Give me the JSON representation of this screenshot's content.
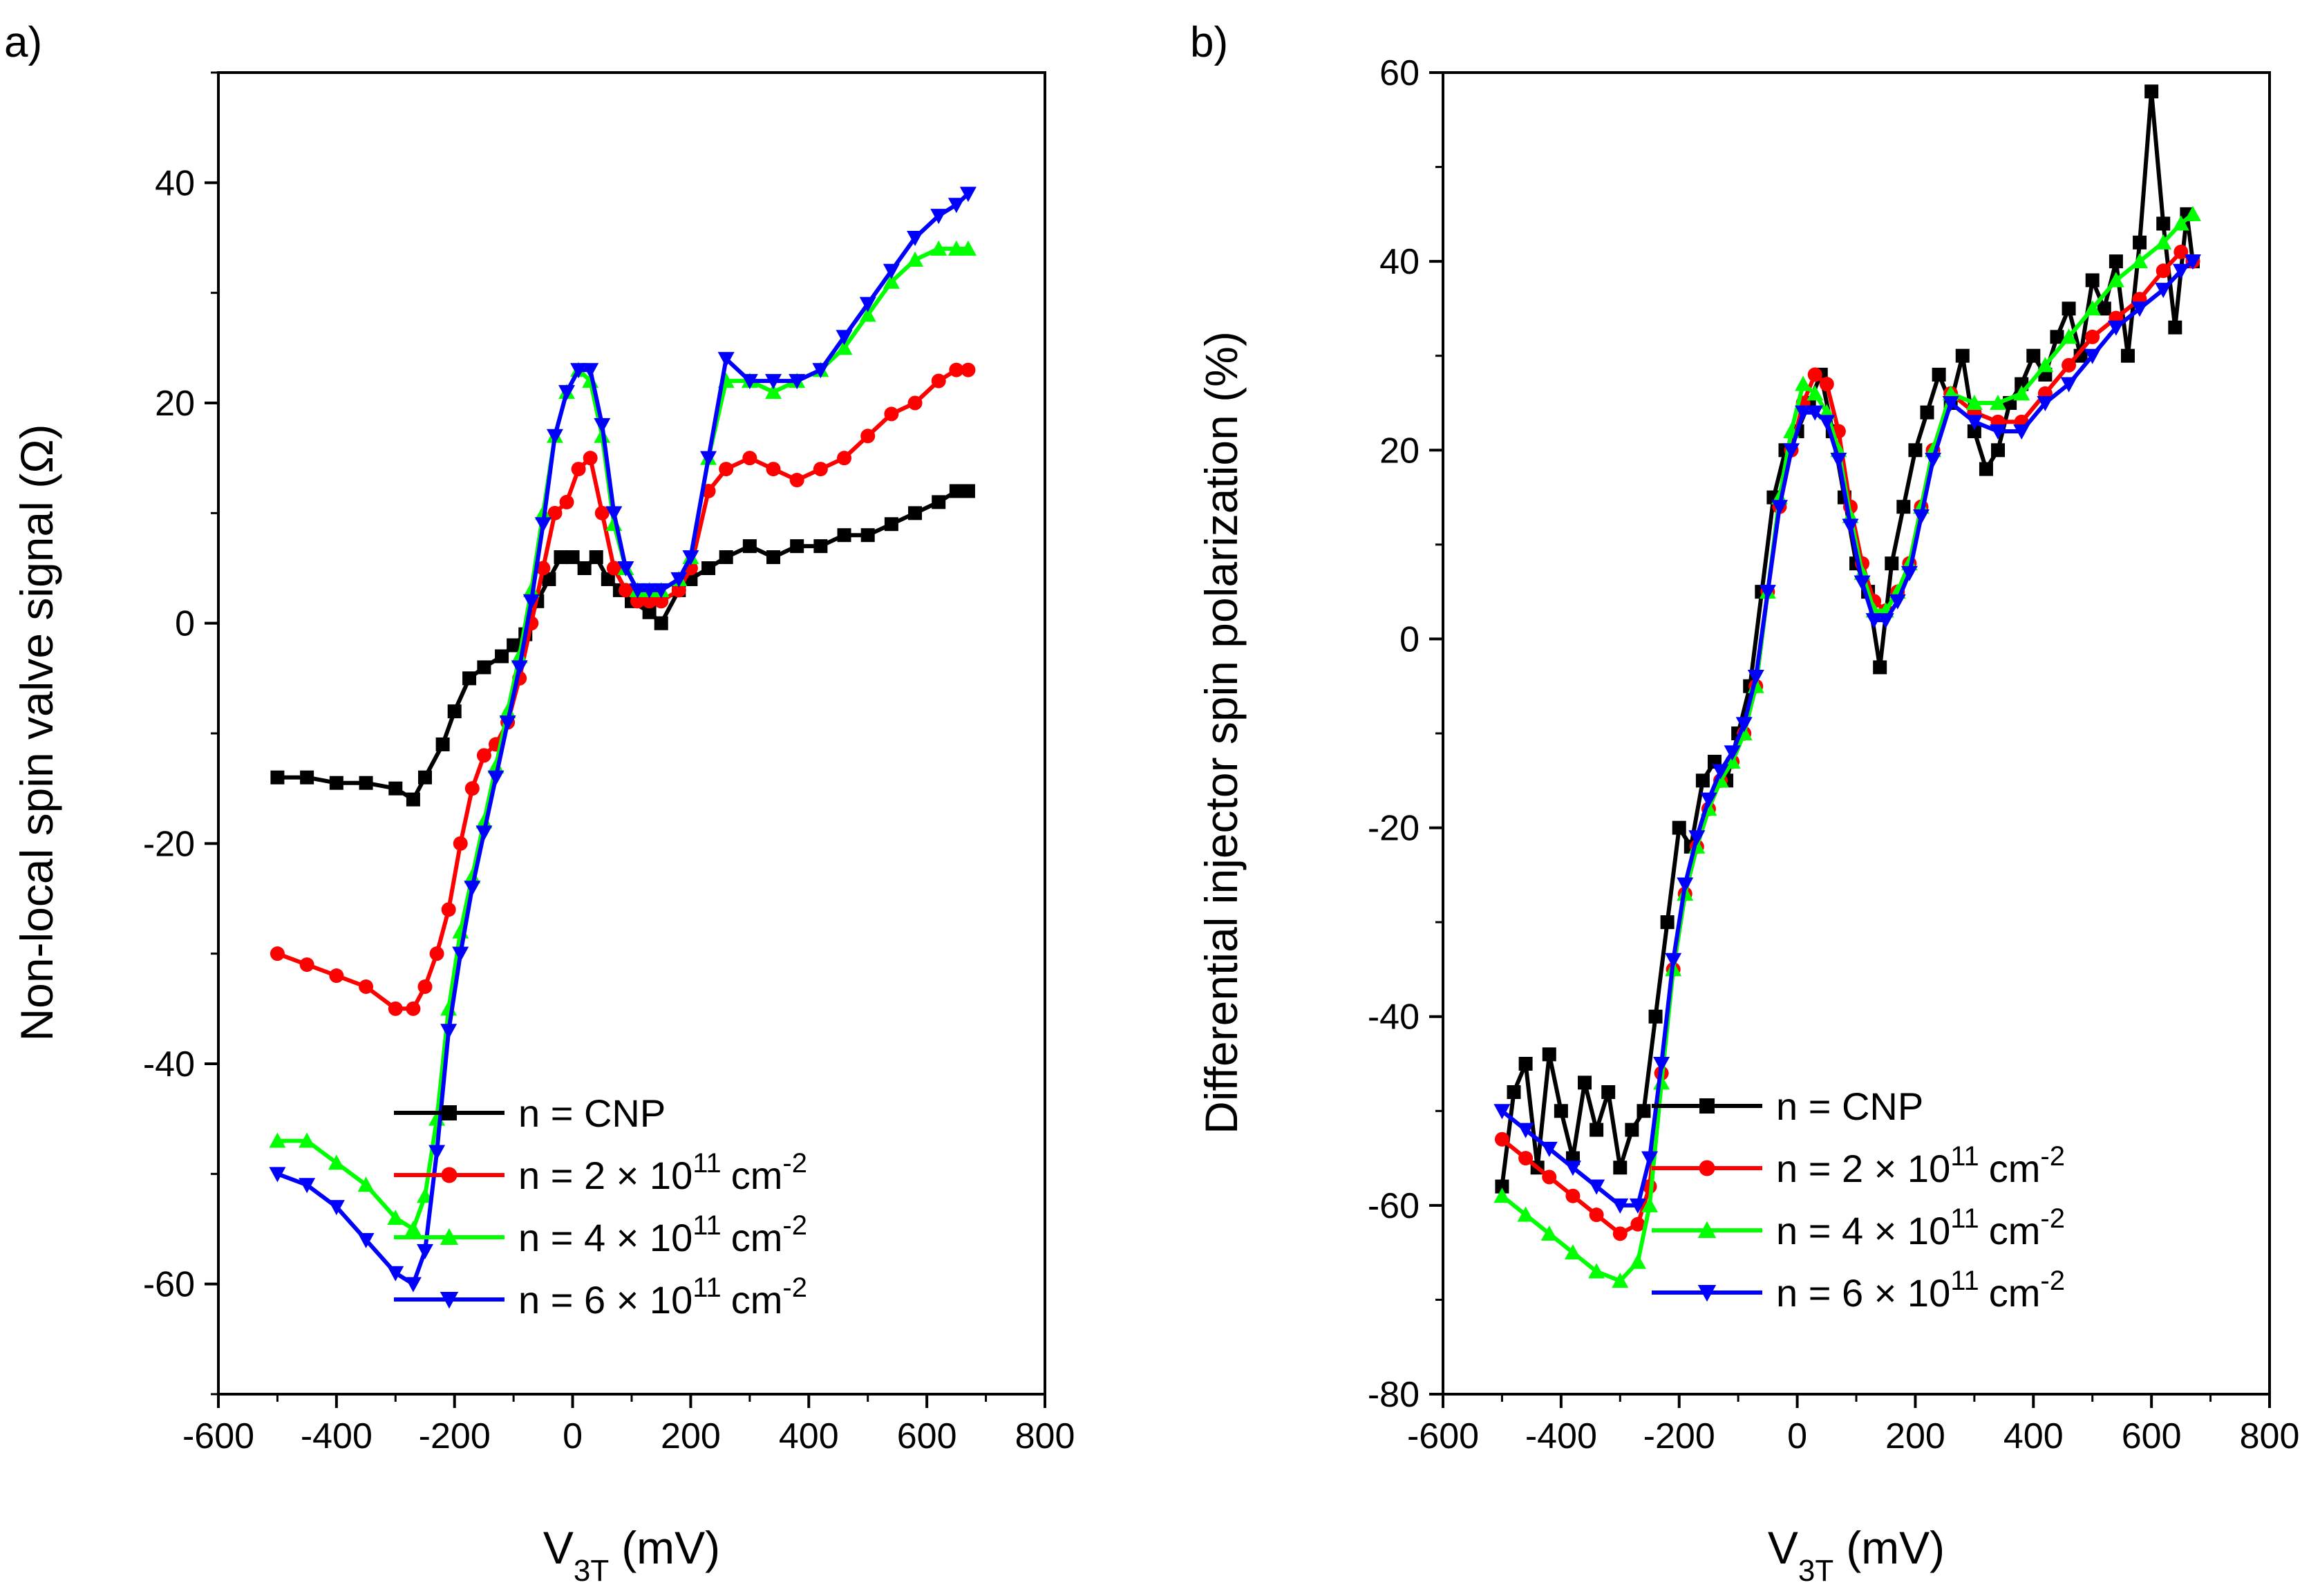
{
  "chart_data": [
    {
      "panel_label": "a)",
      "type": "line",
      "title": "",
      "xlabel": "V",
      "xlabel_sub": "3T",
      "xlabel_unit": "(mV)",
      "ylabel": "Non-local spin valve signal (Ω)",
      "xlim": [
        -600,
        800
      ],
      "ylim": [
        -70,
        50
      ],
      "xticks": [
        "-600",
        "-400",
        "-200",
        "0",
        "200",
        "400",
        "600",
        "800"
      ],
      "yticks": [
        "-60",
        "-40",
        "-20",
        "0",
        "20",
        "40"
      ],
      "grid": false,
      "legend_position": "bottom-right",
      "series": [
        {
          "name": "n = CNP",
          "marker": "square",
          "color": "#000000",
          "legend_prefix": "n = CNP",
          "legend_sup": "",
          "legend_unit": "",
          "x": [
            -500,
            -450,
            -400,
            -350,
            -300,
            -270,
            -250,
            -220,
            -200,
            -175,
            -150,
            -120,
            -100,
            -80,
            -60,
            -40,
            -20,
            0,
            20,
            40,
            60,
            80,
            100,
            130,
            150,
            180,
            200,
            230,
            260,
            300,
            340,
            380,
            420,
            460,
            500,
            540,
            580,
            620,
            650,
            670
          ],
          "y": [
            -14,
            -14,
            -14.5,
            -14.5,
            -15,
            -16,
            -14,
            -11,
            -8,
            -5,
            -4,
            -3,
            -2,
            -1,
            2,
            4,
            6,
            6,
            5,
            6,
            4,
            3,
            2,
            1,
            0,
            3,
            4,
            5,
            6,
            7,
            6,
            7,
            7,
            8,
            8,
            9,
            10,
            11,
            12,
            12
          ]
        },
        {
          "name": "n = 2 × 10^11 cm^-2",
          "marker": "circle",
          "color": "#ff0000",
          "legend_prefix": "n = 2 × 10",
          "legend_sup": "11",
          "legend_unit": "cm",
          "x": [
            -500,
            -450,
            -400,
            -350,
            -300,
            -270,
            -250,
            -230,
            -210,
            -190,
            -170,
            -150,
            -130,
            -110,
            -90,
            -70,
            -50,
            -30,
            -10,
            10,
            30,
            50,
            70,
            90,
            110,
            130,
            150,
            180,
            200,
            230,
            260,
            300,
            340,
            380,
            420,
            460,
            500,
            540,
            580,
            620,
            650,
            670
          ],
          "y": [
            -30,
            -31,
            -32,
            -33,
            -35,
            -35,
            -33,
            -30,
            -26,
            -20,
            -15,
            -12,
            -11,
            -9,
            -5,
            0,
            5,
            10,
            11,
            14,
            15,
            10,
            5,
            3,
            2,
            2,
            2,
            3,
            5,
            12,
            14,
            15,
            14,
            13,
            14,
            15,
            17,
            19,
            20,
            22,
            23,
            23
          ]
        },
        {
          "name": "n = 4 × 10^11 cm^-2",
          "marker": "up-triangle",
          "color": "#00ff00",
          "legend_prefix": "n = 4 × 10",
          "legend_sup": "11",
          "legend_unit": "cm",
          "x": [
            -500,
            -450,
            -400,
            -350,
            -300,
            -270,
            -250,
            -230,
            -210,
            -190,
            -170,
            -150,
            -130,
            -110,
            -90,
            -70,
            -50,
            -30,
            -10,
            10,
            30,
            50,
            70,
            90,
            110,
            130,
            150,
            180,
            200,
            230,
            260,
            300,
            340,
            380,
            420,
            460,
            500,
            540,
            580,
            620,
            650,
            670
          ],
          "y": [
            -47,
            -47,
            -49,
            -51,
            -54,
            -55,
            -52,
            -45,
            -35,
            -28,
            -23,
            -18,
            -13,
            -8,
            -3,
            3,
            10,
            17,
            21,
            23,
            22,
            17,
            9,
            5,
            3,
            3,
            3,
            4,
            6,
            15,
            22,
            22,
            21,
            22,
            23,
            25,
            28,
            31,
            33,
            34,
            34,
            34
          ]
        },
        {
          "name": "n = 6 × 10^11 cm^-2",
          "marker": "down-triangle",
          "color": "#0000ff",
          "legend_prefix": "n = 6 × 10",
          "legend_sup": "11",
          "legend_unit": "cm",
          "x": [
            -500,
            -450,
            -400,
            -350,
            -300,
            -270,
            -250,
            -230,
            -210,
            -190,
            -170,
            -150,
            -130,
            -110,
            -90,
            -70,
            -50,
            -30,
            -10,
            10,
            30,
            50,
            70,
            90,
            110,
            130,
            150,
            180,
            200,
            230,
            260,
            300,
            340,
            380,
            420,
            460,
            500,
            540,
            580,
            620,
            650,
            670
          ],
          "y": [
            -50,
            -51,
            -53,
            -56,
            -59,
            -60,
            -57,
            -48,
            -37,
            -30,
            -24,
            -19,
            -14,
            -9,
            -4,
            2,
            9,
            17,
            21,
            23,
            23,
            18,
            10,
            5,
            3,
            3,
            3,
            4,
            6,
            15,
            24,
            22,
            22,
            22,
            23,
            26,
            29,
            32,
            35,
            37,
            38,
            39
          ]
        }
      ]
    },
    {
      "panel_label": "b)",
      "type": "line",
      "title": "",
      "xlabel": "V",
      "xlabel_sub": "3T",
      "xlabel_unit": "(mV)",
      "ylabel": "Differential injector spin polarization (%)",
      "xlim": [
        -600,
        800
      ],
      "ylim": [
        -80,
        60
      ],
      "xticks": [
        "-600",
        "-400",
        "-200",
        "0",
        "200",
        "400",
        "600",
        "800"
      ],
      "yticks": [
        "-80",
        "-60",
        "-40",
        "-20",
        "0",
        "20",
        "40",
        "60"
      ],
      "grid": false,
      "legend_position": "bottom-right",
      "series": [
        {
          "name": "n = CNP",
          "marker": "square",
          "color": "#000000",
          "legend_prefix": "n = CNP",
          "legend_sup": "",
          "legend_unit": "",
          "x": [
            -500,
            -480,
            -460,
            -440,
            -420,
            -400,
            -380,
            -360,
            -340,
            -320,
            -300,
            -280,
            -260,
            -240,
            -220,
            -200,
            -180,
            -160,
            -140,
            -120,
            -100,
            -80,
            -60,
            -40,
            -20,
            0,
            20,
            40,
            60,
            80,
            100,
            120,
            140,
            160,
            180,
            200,
            220,
            240,
            260,
            280,
            300,
            320,
            340,
            360,
            380,
            400,
            420,
            440,
            460,
            480,
            500,
            520,
            540,
            560,
            580,
            600,
            620,
            640,
            660,
            670
          ],
          "y": [
            -58,
            -48,
            -45,
            -56,
            -44,
            -50,
            -55,
            -47,
            -52,
            -48,
            -56,
            -52,
            -50,
            -40,
            -30,
            -20,
            -22,
            -15,
            -13,
            -15,
            -10,
            -5,
            5,
            15,
            20,
            22,
            25,
            28,
            22,
            15,
            8,
            5,
            -3,
            8,
            14,
            20,
            24,
            28,
            25,
            30,
            22,
            18,
            20,
            25,
            27,
            30,
            28,
            32,
            35,
            30,
            38,
            35,
            40,
            30,
            42,
            58,
            44,
            33,
            45,
            40
          ]
        },
        {
          "name": "n = 2 × 10^11 cm^-2",
          "marker": "circle",
          "color": "#ff0000",
          "legend_prefix": "n = 2 × 10",
          "legend_sup": "11",
          "legend_unit": "cm",
          "x": [
            -500,
            -460,
            -420,
            -380,
            -340,
            -300,
            -270,
            -250,
            -230,
            -210,
            -190,
            -170,
            -150,
            -130,
            -110,
            -90,
            -70,
            -50,
            -30,
            -10,
            10,
            30,
            50,
            70,
            90,
            110,
            130,
            150,
            170,
            190,
            210,
            230,
            260,
            300,
            340,
            380,
            420,
            460,
            500,
            540,
            580,
            620,
            650,
            670
          ],
          "y": [
            -53,
            -55,
            -57,
            -59,
            -61,
            -63,
            -62,
            -58,
            -46,
            -35,
            -27,
            -22,
            -18,
            -15,
            -13,
            -10,
            -5,
            5,
            14,
            20,
            25,
            28,
            27,
            22,
            14,
            8,
            4,
            3,
            5,
            8,
            14,
            20,
            26,
            24,
            23,
            23,
            26,
            29,
            32,
            34,
            36,
            39,
            41,
            40
          ]
        },
        {
          "name": "n = 4 × 10^11 cm^-2",
          "marker": "up-triangle",
          "color": "#00ff00",
          "legend_prefix": "n = 4 × 10",
          "legend_sup": "11",
          "legend_unit": "cm",
          "x": [
            -500,
            -460,
            -420,
            -380,
            -340,
            -300,
            -270,
            -250,
            -230,
            -210,
            -190,
            -170,
            -150,
            -130,
            -110,
            -90,
            -70,
            -50,
            -30,
            -10,
            10,
            30,
            50,
            70,
            90,
            110,
            130,
            150,
            170,
            190,
            210,
            230,
            260,
            300,
            340,
            380,
            420,
            460,
            500,
            540,
            580,
            620,
            650,
            670
          ],
          "y": [
            -59,
            -61,
            -63,
            -65,
            -67,
            -68,
            -66,
            -60,
            -47,
            -35,
            -27,
            -22,
            -18,
            -15,
            -13,
            -10,
            -5,
            5,
            15,
            22,
            27,
            26,
            24,
            20,
            13,
            7,
            3,
            3,
            5,
            8,
            14,
            20,
            26,
            25,
            25,
            26,
            29,
            32,
            35,
            38,
            40,
            42,
            44,
            45
          ]
        },
        {
          "name": "n = 6 × 10^11 cm^-2",
          "marker": "down-triangle",
          "color": "#0000ff",
          "legend_prefix": "n = 6 × 10",
          "legend_sup": "11",
          "legend_unit": "cm",
          "x": [
            -500,
            -460,
            -420,
            -380,
            -340,
            -300,
            -270,
            -250,
            -230,
            -210,
            -190,
            -170,
            -150,
            -130,
            -110,
            -90,
            -70,
            -50,
            -30,
            -10,
            10,
            30,
            50,
            70,
            90,
            110,
            130,
            150,
            170,
            190,
            210,
            230,
            260,
            300,
            340,
            380,
            420,
            460,
            500,
            540,
            580,
            620,
            650,
            670
          ],
          "y": [
            -50,
            -52,
            -54,
            -56,
            -58,
            -60,
            -60,
            -55,
            -45,
            -34,
            -26,
            -21,
            -17,
            -14,
            -12,
            -9,
            -4,
            5,
            14,
            20,
            24,
            24,
            23,
            19,
            12,
            6,
            2,
            2,
            4,
            7,
            13,
            19,
            25,
            23,
            22,
            22,
            25,
            27,
            30,
            33,
            35,
            37,
            39,
            40
          ]
        }
      ]
    }
  ]
}
